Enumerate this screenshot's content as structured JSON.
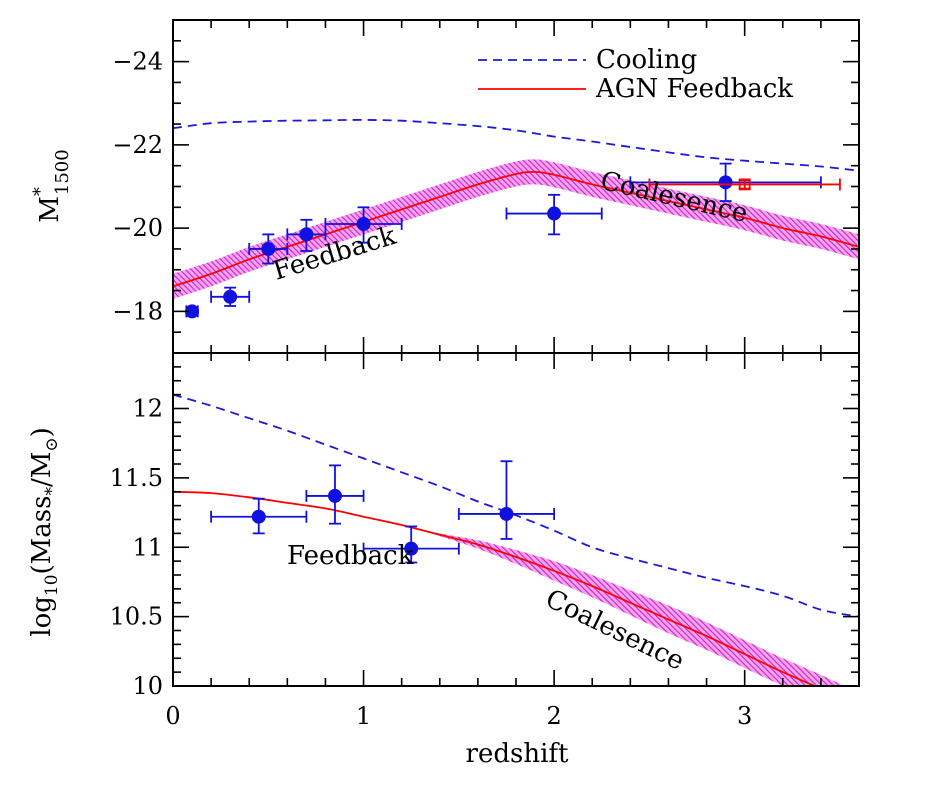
{
  "colors": {
    "cooling": "#1a1adb",
    "agn": "#ff0000",
    "band": "#e034d8",
    "points": "#1010e0",
    "red_points": "#ff0000"
  },
  "chart_data": [
    {
      "id": "top",
      "type": "scatter",
      "xlabel": "",
      "ylabel": "M*1500",
      "ylabel_main": "M",
      "ylabel_sup": "*",
      "ylabel_sub": "1500",
      "xlim": [
        0,
        3.6
      ],
      "ylim": [
        -17,
        -25
      ],
      "yticks": [
        -18,
        -20,
        -22,
        -24
      ],
      "ytick_labels": [
        "−18",
        "−20",
        "−22",
        "−24"
      ],
      "legend": {
        "position": "top-right",
        "entries": [
          {
            "label": "Cooling",
            "style": "dashed",
            "color": "#1a1adb"
          },
          {
            "label": "AGN Feedback",
            "style": "solid",
            "color": "#ff0000"
          }
        ]
      },
      "series": [
        {
          "name": "Cooling",
          "style": "dashed",
          "x": [
            0,
            0.2,
            0.4,
            0.6,
            0.8,
            1.0,
            1.2,
            1.4,
            1.6,
            1.8,
            2.0,
            2.2,
            2.4,
            2.6,
            2.8,
            3.0,
            3.2,
            3.4,
            3.6
          ],
          "y": [
            -22.4,
            -22.52,
            -22.56,
            -22.58,
            -22.59,
            -22.6,
            -22.58,
            -22.52,
            -22.45,
            -22.35,
            -22.2,
            -22.08,
            -21.95,
            -21.82,
            -21.7,
            -21.62,
            -21.55,
            -21.48,
            -21.38
          ]
        },
        {
          "name": "AGN Feedback",
          "style": "solid",
          "x": [
            0,
            0.2,
            0.4,
            0.6,
            0.8,
            1.0,
            1.2,
            1.4,
            1.6,
            1.8,
            1.9,
            2.0,
            2.2,
            2.4,
            2.6,
            2.8,
            3.0,
            3.2,
            3.4,
            3.6
          ],
          "y": [
            -18.6,
            -18.9,
            -19.25,
            -19.55,
            -19.85,
            -20.15,
            -20.45,
            -20.75,
            -21.05,
            -21.3,
            -21.35,
            -21.28,
            -21.05,
            -20.85,
            -20.65,
            -20.45,
            -20.25,
            -20.0,
            -19.8,
            -19.55
          ],
          "band_halfwidth": 0.3
        }
      ],
      "points": [
        {
          "x": 0.1,
          "y": -18.0,
          "xerr": [
            0.03,
            0.03
          ],
          "yerr": [
            0.1,
            0.1
          ],
          "color": "blue"
        },
        {
          "x": 0.3,
          "y": -18.35,
          "xerr": [
            0.1,
            0.1
          ],
          "yerr": [
            0.22,
            0.22
          ],
          "color": "blue"
        },
        {
          "x": 0.5,
          "y": -19.5,
          "xerr": [
            0.1,
            0.1
          ],
          "yerr": [
            0.35,
            0.35
          ],
          "color": "blue"
        },
        {
          "x": 0.7,
          "y": -19.85,
          "xerr": [
            0.1,
            0.1
          ],
          "yerr": [
            0.35,
            0.4
          ],
          "color": "blue"
        },
        {
          "x": 1.0,
          "y": -20.1,
          "xerr": [
            0.2,
            0.2
          ],
          "yerr": [
            0.4,
            0.45
          ],
          "color": "blue"
        },
        {
          "x": 2.0,
          "y": -20.35,
          "xerr": [
            0.25,
            0.25
          ],
          "yerr": [
            0.45,
            0.5
          ],
          "color": "blue"
        },
        {
          "x": 2.9,
          "y": -21.1,
          "xerr": [
            0.5,
            0.5
          ],
          "yerr": [
            0.45,
            0.45
          ],
          "color": "blue"
        },
        {
          "x": 3.0,
          "y": -21.05,
          "xerr": [
            0.5,
            0.5
          ],
          "yerr": [
            0.1,
            0.1
          ],
          "color": "red"
        }
      ],
      "annotations": [
        {
          "text": "Feedback",
          "x": 0.86,
          "y": -19.2,
          "angle": -17
        },
        {
          "text": "Coalesence",
          "x": 2.62,
          "y": -20.55,
          "angle": 13
        }
      ]
    },
    {
      "id": "bottom",
      "type": "scatter",
      "xlabel": "redshift",
      "ylabel": "log10(Mass*/M⊙)",
      "ylabel_parts": {
        "a": "log",
        "a_sub": "10",
        "b": "(Mass",
        "b_sub": "*",
        "c": "/M",
        "c_sub": "⊙",
        "d": ")"
      },
      "xlim": [
        0,
        3.6
      ],
      "ylim": [
        10,
        12.4
      ],
      "xticks": [
        0,
        1,
        2,
        3
      ],
      "xtick_labels": [
        "0",
        "1",
        "2",
        "3"
      ],
      "yticks": [
        10,
        10.5,
        11,
        11.5,
        12
      ],
      "ytick_labels": [
        "10",
        "10.5",
        "11",
        "11.5",
        "12"
      ],
      "series": [
        {
          "name": "Cooling",
          "style": "dashed",
          "x": [
            0,
            0.2,
            0.4,
            0.6,
            0.8,
            1.0,
            1.2,
            1.4,
            1.6,
            1.8,
            2.0,
            2.2,
            2.4,
            2.6,
            2.8,
            3.0,
            3.2,
            3.4,
            3.6
          ],
          "y": [
            12.1,
            12.02,
            11.93,
            11.84,
            11.74,
            11.64,
            11.54,
            11.44,
            11.33,
            11.23,
            11.12,
            11.0,
            10.92,
            10.85,
            10.78,
            10.72,
            10.65,
            10.55,
            10.5
          ]
        },
        {
          "name": "AGN Feedback",
          "style": "solid",
          "x": [
            0,
            0.2,
            0.4,
            0.6,
            0.8,
            1.0,
            1.2,
            1.4,
            1.6,
            1.8,
            2.0,
            2.2,
            2.4,
            2.6,
            2.8,
            3.0,
            3.2,
            3.4,
            3.6
          ],
          "y": [
            11.4,
            11.39,
            11.36,
            11.32,
            11.28,
            11.22,
            11.16,
            11.09,
            11.02,
            10.93,
            10.83,
            10.72,
            10.6,
            10.48,
            10.36,
            10.23,
            10.1,
            9.98,
            9.85
          ],
          "band_halfwidth": [
            0,
            0,
            0,
            0,
            0,
            0,
            0,
            0.01,
            0.03,
            0.05,
            0.07,
            0.08,
            0.09,
            0.1,
            0.1,
            0.1,
            0.1,
            0.1,
            0.1
          ]
        }
      ],
      "points": [
        {
          "x": 0.45,
          "y": 11.22,
          "xerr": [
            0.25,
            0.25
          ],
          "yerr": [
            0.12,
            0.13
          ],
          "color": "blue"
        },
        {
          "x": 0.85,
          "y": 11.37,
          "xerr": [
            0.15,
            0.15
          ],
          "yerr": [
            0.2,
            0.22
          ],
          "color": "blue"
        },
        {
          "x": 1.25,
          "y": 10.99,
          "xerr": [
            0.25,
            0.25
          ],
          "yerr": [
            0.1,
            0.16
          ],
          "color": "blue"
        },
        {
          "x": 1.75,
          "y": 11.24,
          "xerr": [
            0.25,
            0.25
          ],
          "yerr": [
            0.18,
            0.38
          ],
          "color": "blue"
        }
      ],
      "annotations": [
        {
          "text": "Feedback",
          "x": 0.93,
          "y": 10.88,
          "angle": 0
        },
        {
          "text": "Coalesence",
          "x": 2.3,
          "y": 10.35,
          "angle": 26
        }
      ]
    }
  ]
}
